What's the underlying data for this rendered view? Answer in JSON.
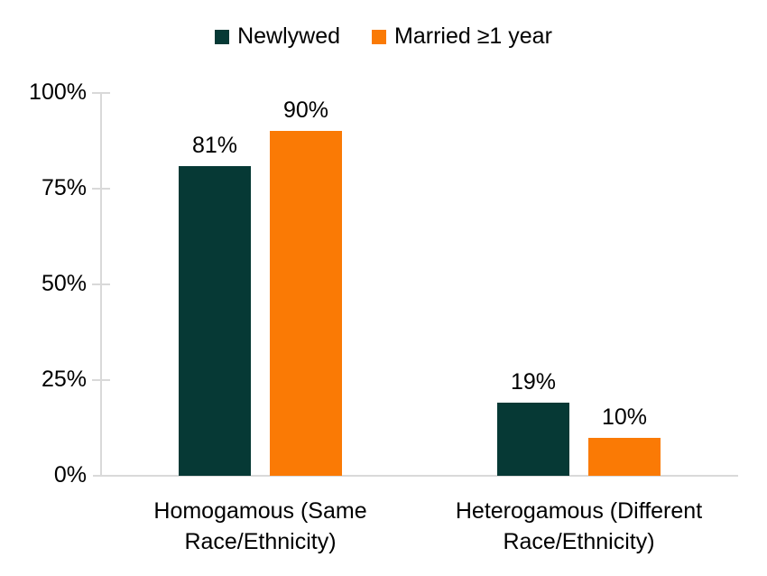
{
  "chart_data": {
    "type": "bar",
    "title": "",
    "xlabel": "",
    "ylabel": "",
    "categories": [
      "Homogamous (Same Race/Ethnicity)",
      "Heterogamous (Different Race/Ethnicity)"
    ],
    "category_lines": [
      [
        "Homogamous (Same",
        "Race/Ethnicity)"
      ],
      [
        "Heterogamous (Different",
        "Race/Ethnicity)"
      ]
    ],
    "series": [
      {
        "name": "Newlywed",
        "color": "#063935",
        "values": [
          81,
          19
        ],
        "labels": [
          "81%",
          "19%"
        ]
      },
      {
        "name": "Married ≥1 year",
        "color": "#FA7A05",
        "values": [
          90,
          10
        ],
        "labels": [
          "90%",
          "10%"
        ]
      }
    ],
    "ylim": [
      0,
      100
    ],
    "ytick_values": [
      0,
      25,
      50,
      75,
      100
    ],
    "ytick_labels": [
      "0%",
      "25%",
      "50%",
      "75%",
      "100%"
    ],
    "grid": "off",
    "legend_position": "top"
  },
  "colors": {
    "axis": "#D9D9D9",
    "text": "#000000",
    "background": "#FFFFFF"
  }
}
